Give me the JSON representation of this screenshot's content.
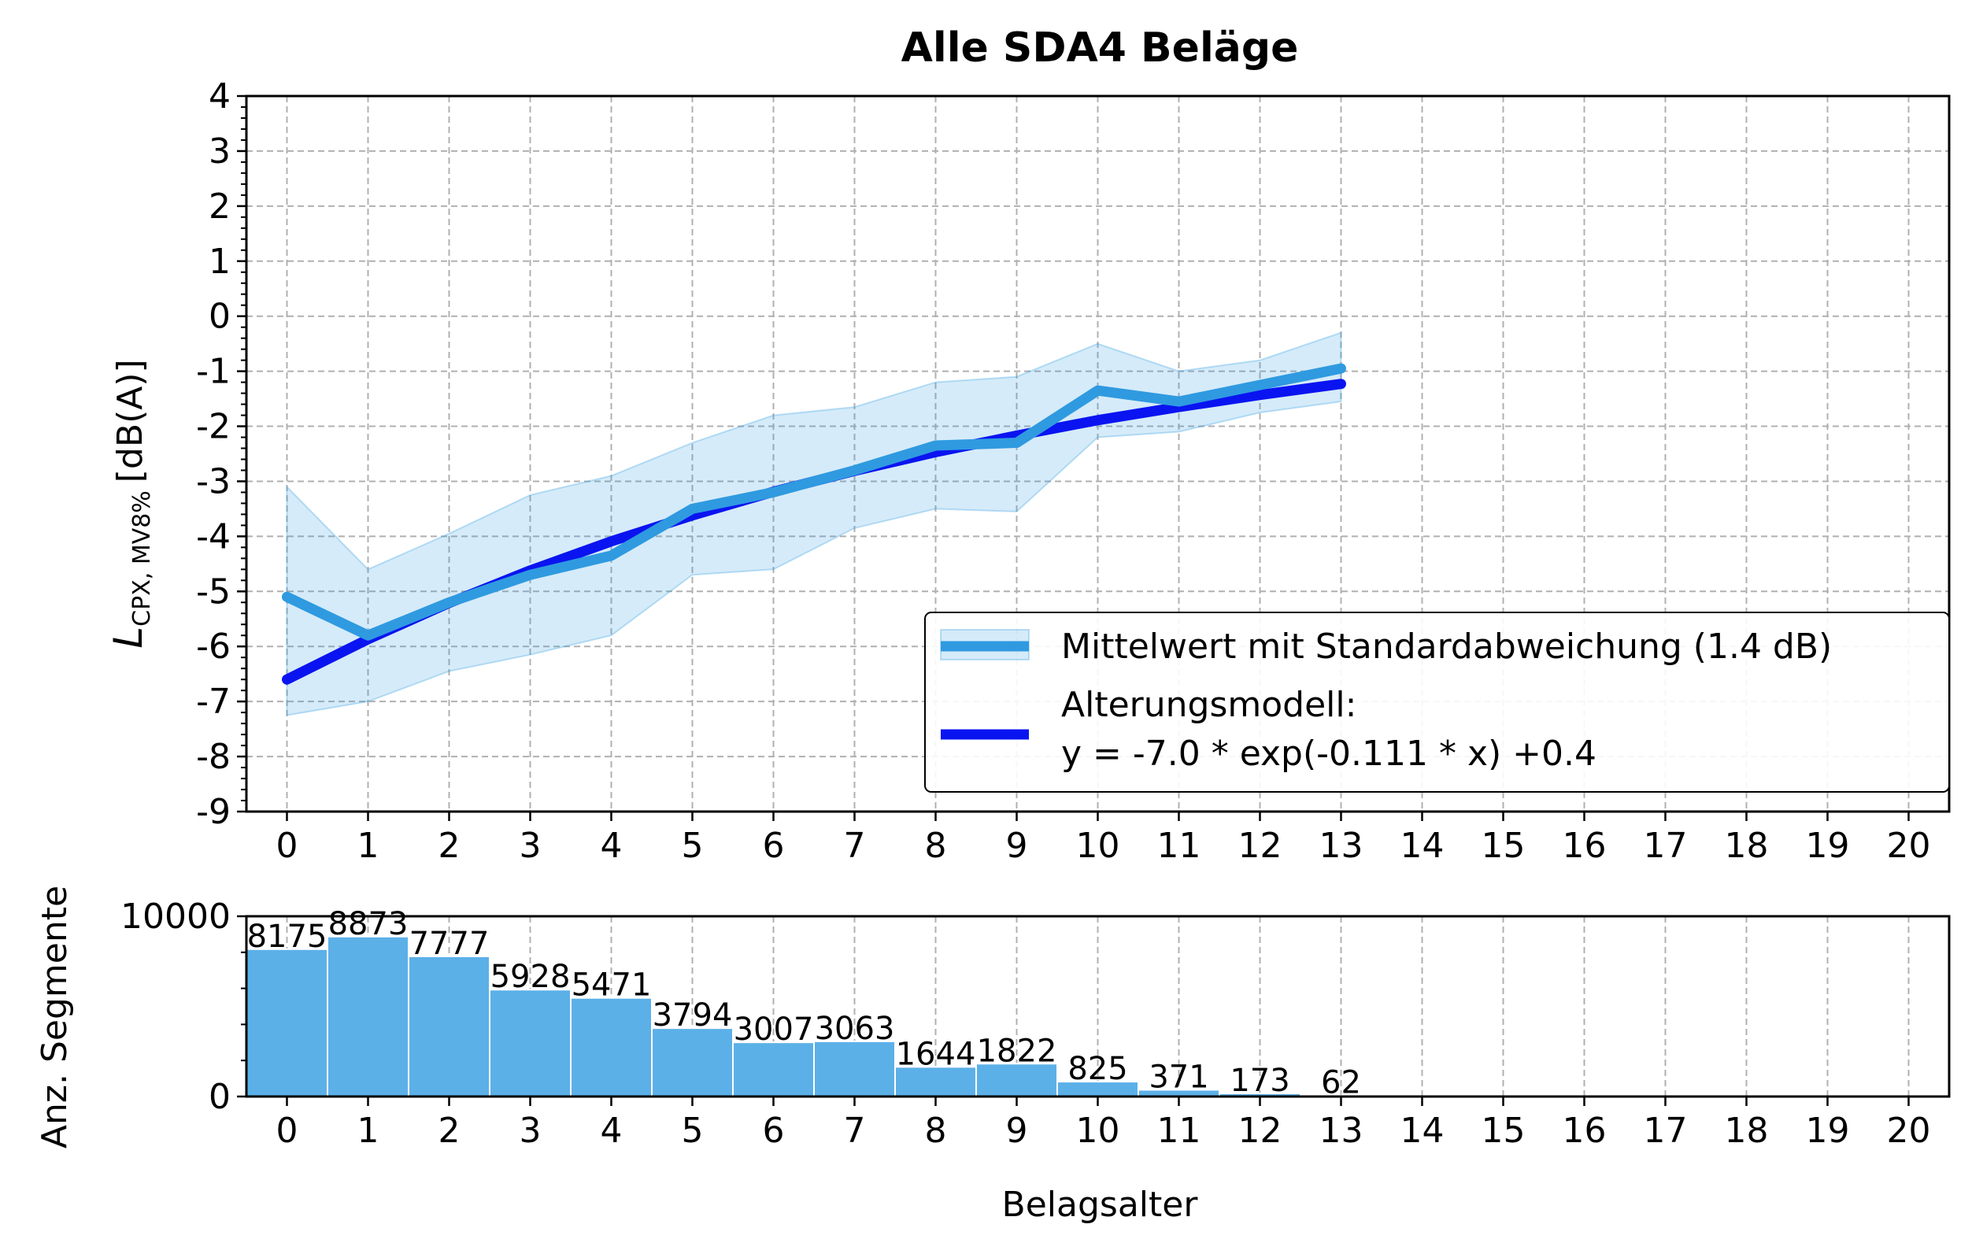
{
  "chart_data": [
    {
      "type": "line",
      "title": "Alle SDA4 Beläge",
      "ylabel_main": "L",
      "ylabel_sub": "CPX, MV8%",
      "ylabel_unit": "[dB(A)]",
      "xlabel": "",
      "xlim": [
        -0.5,
        20.5
      ],
      "ylim": [
        -9,
        4
      ],
      "x_ticks": [
        "0",
        "1",
        "2",
        "3",
        "4",
        "5",
        "6",
        "7",
        "8",
        "9",
        "10",
        "11",
        "12",
        "13",
        "14",
        "15",
        "16",
        "17",
        "18",
        "19",
        "20"
      ],
      "y_ticks": [
        "4",
        "3",
        "2",
        "1",
        "0",
        "-1",
        "-2",
        "-3",
        "-4",
        "-5",
        "-6",
        "-7",
        "-8",
        "-9"
      ],
      "grid": true,
      "legend_position": "lower-right",
      "series": [
        {
          "name": "Mittelwert mit Standardabweichung (1.4 dB)",
          "color": "#2f9ae0",
          "x": [
            0,
            1,
            2,
            3,
            4,
            5,
            6,
            7,
            8,
            9,
            10,
            11,
            12,
            13
          ],
          "y": [
            -5.1,
            -5.8,
            -5.2,
            -4.7,
            -4.35,
            -3.5,
            -3.2,
            -2.8,
            -2.35,
            -2.3,
            -1.35,
            -1.55,
            -1.25,
            -0.95
          ],
          "lower": [
            -7.25,
            -7.0,
            -6.45,
            -6.15,
            -5.8,
            -4.7,
            -4.6,
            -3.85,
            -3.5,
            -3.55,
            -2.2,
            -2.1,
            -1.75,
            -1.55
          ],
          "upper": [
            -3.1,
            -4.6,
            -3.95,
            -3.25,
            -2.9,
            -2.3,
            -1.8,
            -1.65,
            -1.2,
            -1.1,
            -0.5,
            -1.0,
            -0.8,
            -0.3
          ]
        },
        {
          "name": "Alterungsmodell:",
          "name_line2": "y = -7.0 * exp(-0.111 * x) +0.4",
          "color": "#0a14f0",
          "x": [
            0,
            1,
            2,
            3,
            4,
            5,
            6,
            7,
            8,
            9,
            10,
            11,
            12,
            13
          ],
          "y": [
            -6.6,
            -5.87,
            -5.21,
            -4.62,
            -4.09,
            -3.62,
            -3.19,
            -2.81,
            -2.47,
            -2.17,
            -1.89,
            -1.65,
            -1.43,
            -1.23
          ]
        }
      ]
    },
    {
      "type": "bar",
      "ylabel": "Anz. Segmente",
      "xlabel": "Belagsalter",
      "xlim": [
        -0.5,
        20.5
      ],
      "ylim": [
        0,
        10000
      ],
      "x_ticks": [
        "0",
        "1",
        "2",
        "3",
        "4",
        "5",
        "6",
        "7",
        "8",
        "9",
        "10",
        "11",
        "12",
        "13",
        "14",
        "15",
        "16",
        "17",
        "18",
        "19",
        "20"
      ],
      "y_ticks": [
        "10000",
        "0"
      ],
      "grid": true,
      "color": "#5cb0e8",
      "categories": [
        0,
        1,
        2,
        3,
        4,
        5,
        6,
        7,
        8,
        9,
        10,
        11,
        12,
        13
      ],
      "values": [
        8175,
        8873,
        7777,
        5928,
        5471,
        3794,
        3007,
        3063,
        1644,
        1822,
        825,
        371,
        173,
        62
      ],
      "value_labels": [
        "8175",
        "8873",
        "7777",
        "5928",
        "5471",
        "3794",
        "3007",
        "3063",
        "1644",
        "1822",
        "825",
        "371",
        "173",
        "62"
      ]
    }
  ]
}
